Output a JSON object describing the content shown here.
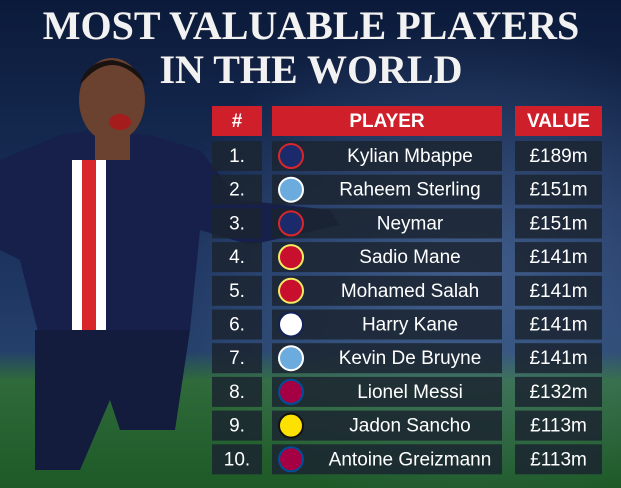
{
  "header": {
    "title_lines": [
      "MOST VALUABLE PLAYERS",
      "IN THE WORLD"
    ]
  },
  "table": {
    "columns": [
      "#",
      "PLAYER",
      "VALUE"
    ],
    "rows": [
      [
        "1.",
        "Kylian Mbappe",
        "£189m"
      ],
      [
        "2.",
        "Raheem Sterling",
        "£151m"
      ],
      [
        "3.",
        "Neymar",
        "£151m"
      ],
      [
        "4.",
        "Sadio Mane",
        "£141m"
      ],
      [
        "5.",
        "Mohamed Salah",
        "£141m"
      ],
      [
        "6.",
        "Harry Kane",
        "£141m"
      ],
      [
        "7.",
        "Kevin De Bruyne",
        "£141m"
      ],
      [
        "8.",
        "Lionel Messi",
        "£132m"
      ],
      [
        "9.",
        "Jadon Sancho",
        "£113m"
      ],
      [
        "10.",
        "Antoine Greizmann",
        "£113m"
      ]
    ]
  }
}
